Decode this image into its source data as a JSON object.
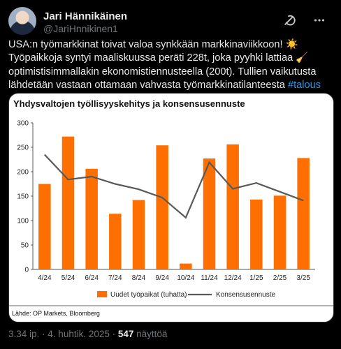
{
  "author": {
    "name": "Jari Hännikäinen",
    "handle": "@JariHnnikinen1"
  },
  "tweet": {
    "text_part1": "USA:n työmarkkinat toivat valoa synkkään markkinaviikkoon! ",
    "emoji_sun": "☀️",
    "text_part2": "Työpaikkoja syntyi maaliskuussa peräti 228t, joka pyyhki lattiaa ",
    "emoji_broom": "🧹",
    "text_part3": " optimistisimmallakin ekonomistiennusteella (200t). Tullien vaikutusta lähdetään vastaan ottamaan vahvasta työmarkkinatilanteesta ",
    "hashtag": "#talous"
  },
  "meta": {
    "time": "3.34 ip.",
    "separator": " · ",
    "date": "4. huhtik. 2025",
    "views_count": "547",
    "views_label": " näyttöä"
  },
  "icons": {
    "grok": "grok-icon",
    "more": "more-options-icon"
  },
  "colors": {
    "bar": "#ff6f00",
    "line": "#595959",
    "hashtag": "#1d9bf0"
  },
  "chart_data": {
    "type": "bar",
    "title": "Yhdysvaltojen työllisyyskehitys ja konsensusennuste",
    "categories": [
      "4/24",
      "5/24",
      "6/24",
      "7/24",
      "8/24",
      "9/24",
      "10/24",
      "11/24",
      "12/24",
      "1/25",
      "2/25",
      "3/25"
    ],
    "series": [
      {
        "name": "Uudet työpaikat (tuhatta)",
        "type": "bar",
        "values": [
          175,
          272,
          206,
          114,
          142,
          254,
          12,
          227,
          256,
          143,
          151,
          228
        ]
      },
      {
        "name": "Konsensusennuste",
        "type": "line",
        "values": [
          235,
          184,
          190,
          175,
          164,
          147,
          106,
          219,
          165,
          177,
          159,
          141
        ]
      }
    ],
    "ylim": [
      0,
      300
    ],
    "yticks": [
      0,
      50,
      100,
      150,
      200,
      250,
      300
    ],
    "grid": false,
    "legend": "bottom",
    "source": "Lähde: OP Markets, Bloomberg"
  }
}
